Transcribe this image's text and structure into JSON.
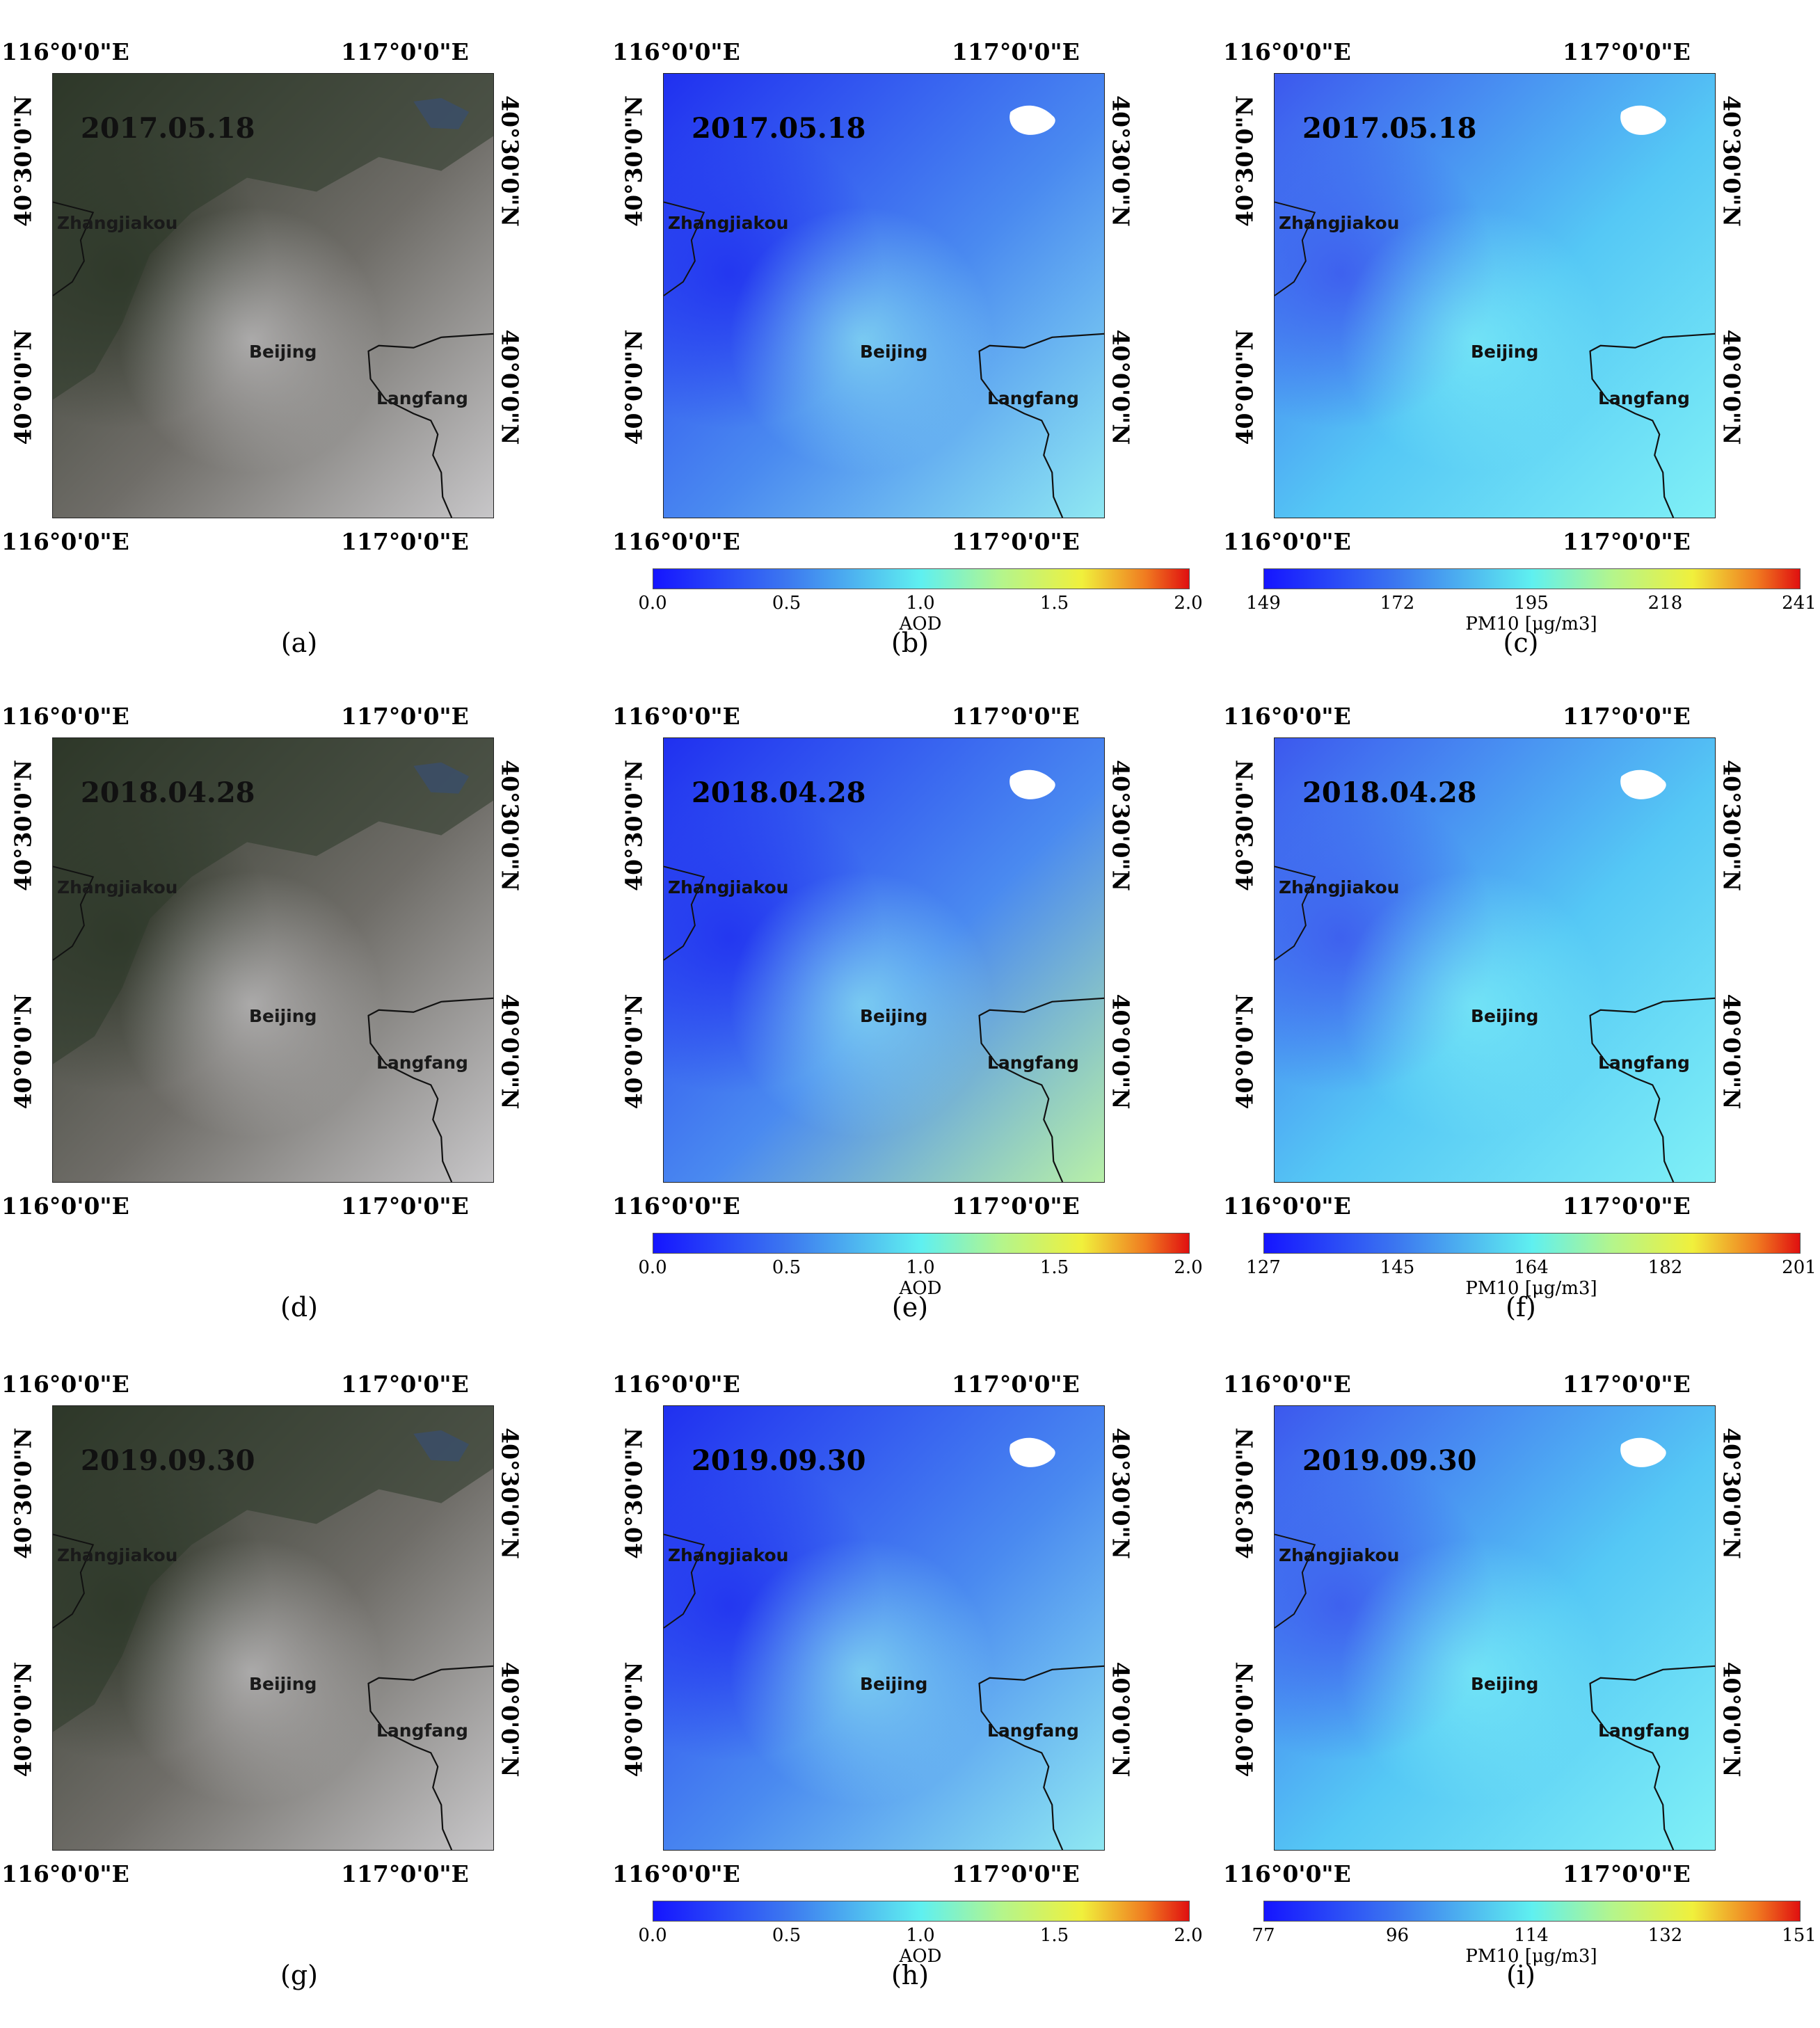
{
  "coords": {
    "lon_left": "116°0'0\"E",
    "lon_right": "117°0'0\"E",
    "lat_upper": "40°30'0\"N",
    "lat_lower": "40°0'0\"N"
  },
  "places": {
    "zhangjiakou": "Zhangjiakou",
    "beijing": "Beijing",
    "langfang": "Langfang"
  },
  "rows": [
    {
      "date": "2017.05.18",
      "panels": [
        {
          "caption": "(a)",
          "type": "rgb"
        },
        {
          "caption": "(b)",
          "type": "aod",
          "colorbar": {
            "ticks": [
              "0.0",
              "0.5",
              "1.0",
              "1.5",
              "2.0"
            ],
            "label": "AOD"
          }
        },
        {
          "caption": "(c)",
          "type": "pm10",
          "colorbar": {
            "ticks": [
              "149",
              "172",
              "195",
              "218",
              "241"
            ],
            "label": "PM10 [μg/m3]"
          }
        }
      ]
    },
    {
      "date": "2018.04.28",
      "panels": [
        {
          "caption": "(d)",
          "type": "rgb"
        },
        {
          "caption": "(e)",
          "type": "aod",
          "colorbar": {
            "ticks": [
              "0.0",
              "0.5",
              "1.0",
              "1.5",
              "2.0"
            ],
            "label": "AOD"
          }
        },
        {
          "caption": "(f)",
          "type": "pm10",
          "colorbar": {
            "ticks": [
              "127",
              "145",
              "164",
              "182",
              "201"
            ],
            "label": "PM10 [μg/m3]"
          }
        }
      ]
    },
    {
      "date": "2019.09.30",
      "panels": [
        {
          "caption": "(g)",
          "type": "rgb"
        },
        {
          "caption": "(h)",
          "type": "aod",
          "colorbar": {
            "ticks": [
              "0.0",
              "0.5",
              "1.0",
              "1.5",
              "2.0"
            ],
            "label": "AOD"
          }
        },
        {
          "caption": "(i)",
          "type": "pm10",
          "colorbar": {
            "ticks": [
              "77",
              "96",
              "114",
              "132",
              "151"
            ],
            "label": "PM10 [μg/m3]"
          }
        }
      ]
    }
  ]
}
